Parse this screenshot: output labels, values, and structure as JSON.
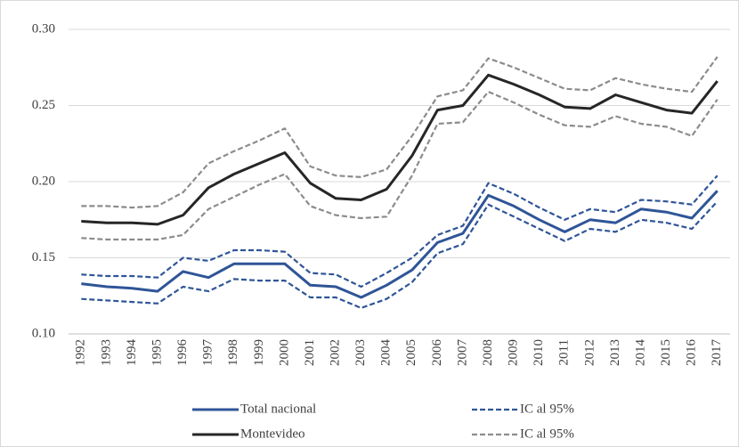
{
  "chart_data": {
    "type": "line",
    "categories": [
      "1992",
      "1993",
      "1994",
      "1995",
      "1996",
      "1997",
      "1998",
      "1999",
      "2000",
      "2001",
      "2002",
      "2003",
      "2004",
      "2005",
      "2006",
      "2007",
      "2008",
      "2009",
      "2010",
      "2011",
      "2012",
      "2013",
      "2014",
      "2015",
      "2016",
      "2017"
    ],
    "ylim": [
      0.1,
      0.3
    ],
    "yticks": [
      {
        "value": 0.1,
        "label": "0.10"
      },
      {
        "value": 0.15,
        "label": "0.15"
      },
      {
        "value": 0.2,
        "label": "0.20"
      },
      {
        "value": 0.25,
        "label": "0.25"
      },
      {
        "value": 0.3,
        "label": "0.30"
      }
    ],
    "grid": true,
    "series": [
      {
        "name": "Total nacional",
        "color": "#2f5597",
        "dashed": false,
        "values": [
          0.133,
          0.131,
          0.13,
          0.128,
          0.141,
          0.137,
          0.146,
          0.146,
          0.146,
          0.132,
          0.131,
          0.124,
          0.132,
          0.142,
          0.16,
          0.166,
          0.191,
          0.184,
          0.175,
          0.167,
          0.175,
          0.173,
          0.182,
          0.18,
          0.176,
          0.194
        ]
      },
      {
        "name": "IC al 95%",
        "color": "#2f5597",
        "dashed": true,
        "upper": [
          0.139,
          0.138,
          0.138,
          0.137,
          0.15,
          0.148,
          0.155,
          0.155,
          0.154,
          0.14,
          0.139,
          0.131,
          0.14,
          0.15,
          0.165,
          0.171,
          0.199,
          0.192,
          0.183,
          0.175,
          0.182,
          0.18,
          0.188,
          0.187,
          0.185,
          0.204
        ],
        "lower": [
          0.123,
          0.122,
          0.121,
          0.12,
          0.131,
          0.128,
          0.136,
          0.135,
          0.135,
          0.124,
          0.124,
          0.117,
          0.123,
          0.134,
          0.153,
          0.159,
          0.185,
          0.177,
          0.169,
          0.161,
          0.169,
          0.167,
          0.175,
          0.173,
          0.169,
          0.187
        ]
      },
      {
        "name": "Montevideo",
        "color": "#262626",
        "dashed": false,
        "values": [
          0.174,
          0.173,
          0.173,
          0.172,
          0.178,
          0.196,
          0.205,
          0.212,
          0.219,
          0.199,
          0.189,
          0.188,
          0.195,
          0.217,
          0.247,
          0.25,
          0.27,
          0.264,
          0.257,
          0.249,
          0.248,
          0.257,
          0.252,
          0.247,
          0.245,
          0.266
        ]
      },
      {
        "name": "IC al 95%",
        "color": "#8c8c8c",
        "dashed": true,
        "upper": [
          0.184,
          0.184,
          0.183,
          0.184,
          0.193,
          0.212,
          0.22,
          0.227,
          0.235,
          0.21,
          0.204,
          0.203,
          0.208,
          0.23,
          0.256,
          0.26,
          0.281,
          0.275,
          0.268,
          0.261,
          0.26,
          0.268,
          0.264,
          0.261,
          0.259,
          0.282
        ],
        "lower": [
          0.163,
          0.162,
          0.162,
          0.162,
          0.165,
          0.182,
          0.19,
          0.198,
          0.205,
          0.184,
          0.178,
          0.176,
          0.177,
          0.204,
          0.238,
          0.239,
          0.259,
          0.252,
          0.244,
          0.237,
          0.236,
          0.243,
          0.238,
          0.236,
          0.23,
          0.254
        ]
      }
    ]
  }
}
